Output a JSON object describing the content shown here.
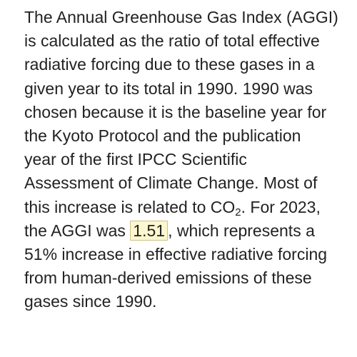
{
  "article": {
    "lines": [
      "The Annual Greenhouse Gas Index (AGGI)",
      "is calculated as the ratio of total effective",
      "radiative forcing due to these gases in a",
      "given year to its total in 1990. 1990 was",
      "chosen because it is the baseline year for",
      "the Kyoto Protocol and the publication",
      "year of the first IPCC Scientific",
      "Assessment of Climate Change. Most of"
    ],
    "line9_before": "this increase is related to CO",
    "line9_sub": "2",
    "line9_after": ". For 2023,",
    "line10_before": "the AGGI was ",
    "highlight_value": "1.51",
    "line10_after": ", which represents a",
    "lines_end": [
      "51% increase in effective radiative forcing",
      "from human-derived emissions of these",
      "gases since 1990."
    ]
  },
  "colors": {
    "text": "#222222",
    "highlight_background": "#fdf7cf",
    "highlight_border": "#c9c08a"
  }
}
